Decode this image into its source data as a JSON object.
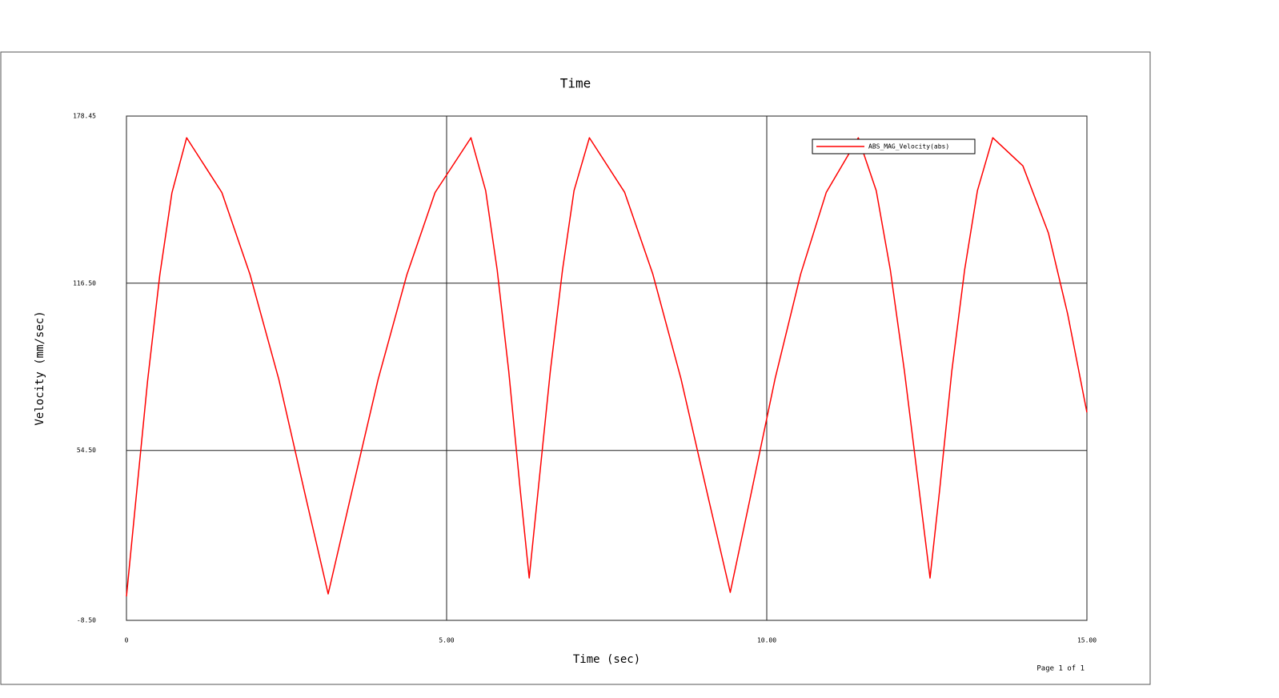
{
  "chart_data": {
    "type": "line",
    "title": "Time",
    "x_label": "Time (sec)",
    "y_label": "Velocity (mm/sec)",
    "footer": "Page 1 of 1",
    "x": [
      0,
      0.14,
      0.33,
      0.52,
      0.71,
      0.94,
      1.49,
      1.93,
      2.38,
      2.82,
      3.15,
      3.48,
      3.93,
      4.38,
      4.82,
      5.38,
      5.61,
      5.79,
      5.97,
      6.15,
      6.29,
      6.43,
      6.62,
      6.81,
      6.99,
      7.23,
      7.78,
      8.22,
      8.66,
      9.1,
      9.43,
      9.73,
      10.13,
      10.53,
      10.93,
      11.43,
      11.71,
      11.93,
      12.15,
      12.38,
      12.55,
      12.7,
      12.89,
      13.09,
      13.29,
      13.53,
      14.0,
      14.4,
      14.7,
      15
    ],
    "series": [
      {
        "name": "ABS_MAG_Velocity(abs)",
        "color": "#ff0000",
        "values": [
          0.4,
          34.4,
          80.3,
          119.4,
          150.0,
          170.4,
          150.1,
          119.7,
          80.8,
          35.1,
          1.3,
          35.1,
          80.8,
          119.7,
          150.1,
          170.4,
          150.8,
          121.4,
          83.9,
          39.8,
          7.2,
          39.8,
          83.9,
          121.4,
          150.8,
          170.4,
          150.2,
          119.9,
          81.1,
          35.6,
          1.9,
          35.6,
          81.1,
          119.9,
          150.2,
          170.4,
          150.8,
          121.4,
          83.9,
          39.8,
          7.2,
          39.8,
          83.9,
          121.4,
          150.8,
          170.4,
          160,
          135,
          105,
          68.6
        ]
      }
    ],
    "xlim": [
      0,
      15
    ],
    "xticks": [
      0,
      {
        "value": 5,
        "label": "5.00"
      },
      {
        "value": 10,
        "label": "10.00"
      },
      {
        "value": 15,
        "label": "15.00"
      }
    ],
    "ylim": [
      -8.5,
      178.45
    ],
    "yticks": [
      {
        "value": -8.5,
        "label": "-8.50"
      },
      {
        "value": 54.5,
        "label": "54.50"
      },
      {
        "value": 116.5,
        "label": "116.50"
      },
      178.45
    ],
    "grid": true,
    "legend": "upper right"
  }
}
